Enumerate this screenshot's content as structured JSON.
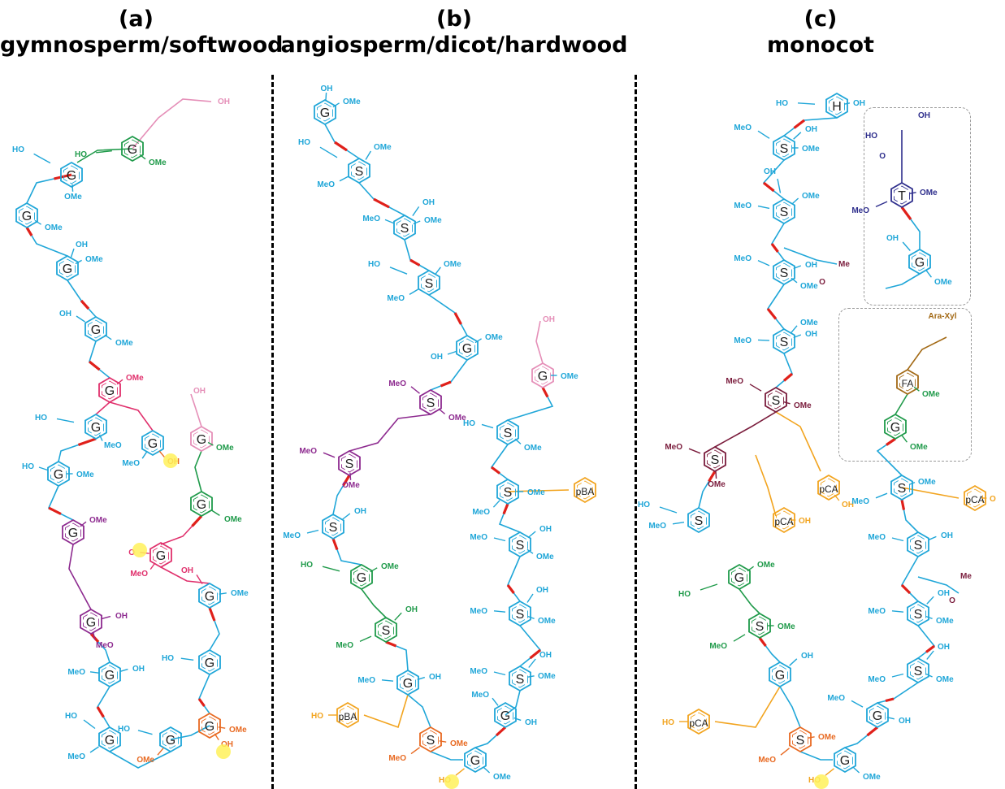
{
  "panels": [
    {
      "letter": "(a)",
      "name": "gymnosperm/softwood"
    },
    {
      "letter": "(b)",
      "name": "angiosperm/dicot/hardwood"
    },
    {
      "letter": "(c)",
      "name": "monocot"
    }
  ],
  "colors": {
    "blue": "#1fa6d8",
    "green": "#1f9a4a",
    "pink": "#e58fb8",
    "magenta": "#e0306c",
    "purple": "#8d2a8f",
    "orange": "#f2a41f",
    "darkorange": "#e86a22",
    "maroon": "#7a1c3c",
    "navy": "#2e2e8c",
    "brown": "#a36a16",
    "bond_red": "#e0201a",
    "highlight": "#fff15a"
  },
  "text": {
    "OH": "OH",
    "HO": "HO",
    "OMe": "OMe",
    "MeO": "MeO",
    "O": "O",
    "Me": "Me",
    "G": "G",
    "S": "S",
    "H": "H",
    "T": "T",
    "FA": "FA",
    "pBA": "pBA",
    "pCA": "pCA",
    "araxyl": "Ara-Xyl"
  }
}
